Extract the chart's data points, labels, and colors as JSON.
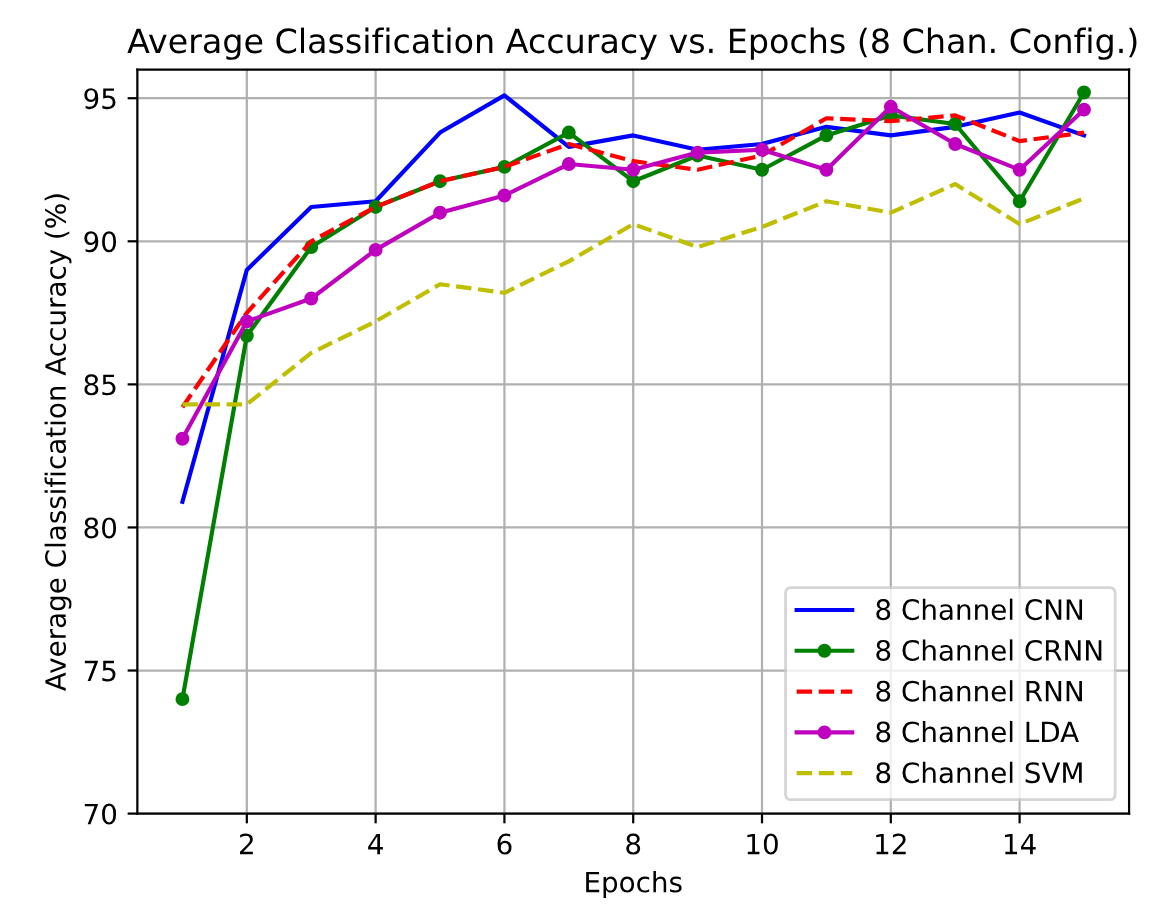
{
  "chart_data": {
    "type": "line",
    "title": "Average Classification Accuracy vs. Epochs (8 Chan. Config.)",
    "xlabel": "Epochs",
    "ylabel": "Average Classification Accuracy (%)",
    "x": [
      1,
      2,
      3,
      4,
      5,
      6,
      7,
      8,
      9,
      10,
      11,
      12,
      13,
      14,
      15
    ],
    "series": [
      {
        "name": "8 Channel CNN",
        "color": "#0000ff",
        "marker": "none",
        "line_style": "solid",
        "values": [
          80.9,
          89.0,
          91.2,
          91.4,
          93.8,
          95.1,
          93.3,
          93.7,
          93.2,
          93.4,
          94.0,
          93.7,
          94.0,
          94.5,
          93.7
        ]
      },
      {
        "name": "8 Channel CRNN",
        "color": "#008000",
        "marker": "circle",
        "line_style": "solid",
        "values": [
          74.0,
          86.7,
          89.8,
          91.2,
          92.1,
          92.6,
          93.8,
          92.1,
          93.0,
          92.5,
          93.7,
          94.4,
          94.1,
          91.4,
          95.2
        ]
      },
      {
        "name": "8 Channel RNN",
        "color": "#ff0000",
        "marker": "none",
        "line_style": "dashed",
        "values": [
          84.2,
          87.5,
          90.0,
          91.2,
          92.1,
          92.6,
          93.4,
          92.8,
          92.5,
          93.0,
          94.3,
          94.2,
          94.4,
          93.5,
          93.8
        ]
      },
      {
        "name": "8 Channel LDA",
        "color": "#bf00bf",
        "marker": "circle",
        "line_style": "solid",
        "values": [
          83.1,
          87.2,
          88.0,
          89.7,
          91.0,
          91.6,
          92.7,
          92.5,
          93.1,
          93.2,
          92.5,
          94.7,
          93.4,
          92.5,
          94.6
        ]
      },
      {
        "name": "8 Channel SVM",
        "color": "#bfbf00",
        "marker": "none",
        "line_style": "dashed",
        "values": [
          84.3,
          84.3,
          86.1,
          87.2,
          88.5,
          88.2,
          89.3,
          90.6,
          89.8,
          90.5,
          91.4,
          91.0,
          92.0,
          90.6,
          91.5
        ]
      }
    ],
    "xlim": [
      0.3,
      15.7
    ],
    "xticks": [
      2,
      4,
      6,
      8,
      10,
      12,
      14
    ],
    "ylim": [
      70,
      96
    ],
    "yticks": [
      70,
      75,
      80,
      85,
      90,
      95
    ],
    "grid": true,
    "legend": "bottom right"
  }
}
